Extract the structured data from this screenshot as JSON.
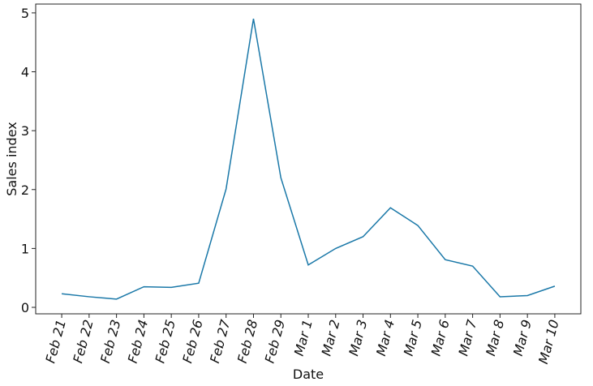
{
  "chart_data": {
    "type": "line",
    "x_label": "Date",
    "y_label": "Sales index",
    "categories": [
      "Feb 21",
      "Feb 22",
      "Feb 23",
      "Feb 24",
      "Feb 25",
      "Feb 26",
      "Feb 27",
      "Feb 28",
      "Feb 29",
      "Mar 1",
      "Mar 2",
      "Mar 3",
      "Mar 4",
      "Mar 5",
      "Mar 6",
      "Mar 7",
      "Mar 8",
      "Mar 9",
      "Mar 10"
    ],
    "series": [
      {
        "color": "#1a78a8",
        "values": [
          0.23,
          0.18,
          0.14,
          0.35,
          0.34,
          0.41,
          2.01,
          4.9,
          2.2,
          0.72,
          1.0,
          1.2,
          1.69,
          1.39,
          0.81,
          0.7,
          0.18,
          0.2,
          0.36
        ]
      }
    ],
    "ylim": [
      -0.11,
      5.15
    ],
    "yticks": [
      0,
      1,
      2,
      3,
      4,
      5
    ],
    "grid": false
  }
}
